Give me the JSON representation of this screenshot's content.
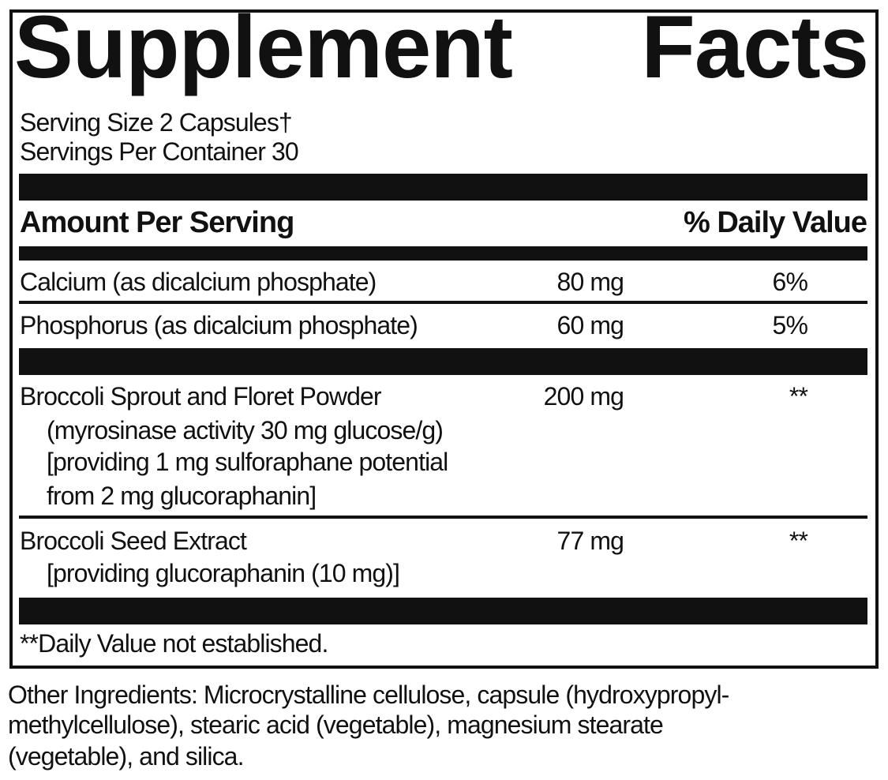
{
  "title": {
    "word1": "Supplement",
    "word2": "Facts"
  },
  "serving_size": "Serving Size 2 Capsules†",
  "servings_per_container": "Servings Per Container 30",
  "header": {
    "amount": "Amount Per Serving",
    "daily_value": "% Daily Value"
  },
  "rows": [
    {
      "name": "Calcium (as dicalcium phosphate)",
      "amount": "80 mg",
      "dv": "6%"
    },
    {
      "name": "Phosphorus (as dicalcium phosphate)",
      "amount": "60 mg",
      "dv": "5%"
    },
    {
      "name": "Broccoli Sprout and Floret Powder",
      "sub": [
        "(myrosinase activity 30 mg glucose/g)",
        "[providing 1 mg sulforaphane potential",
        "from 2 mg glucoraphanin]"
      ],
      "amount": "200 mg",
      "dv": "**"
    },
    {
      "name": "Broccoli Seed Extract",
      "sub": [
        "[providing glucoraphanin (10 mg)]"
      ],
      "amount": "77 mg",
      "dv": "**"
    }
  ],
  "footnote": "**Daily Value not established.",
  "other_ingredients": [
    "Other Ingredients: Microcrystalline cellulose, capsule (hydroxypropyl-",
    "methylcellulose), stearic acid (vegetable), magnesium stearate",
    "(vegetable), and silica."
  ]
}
